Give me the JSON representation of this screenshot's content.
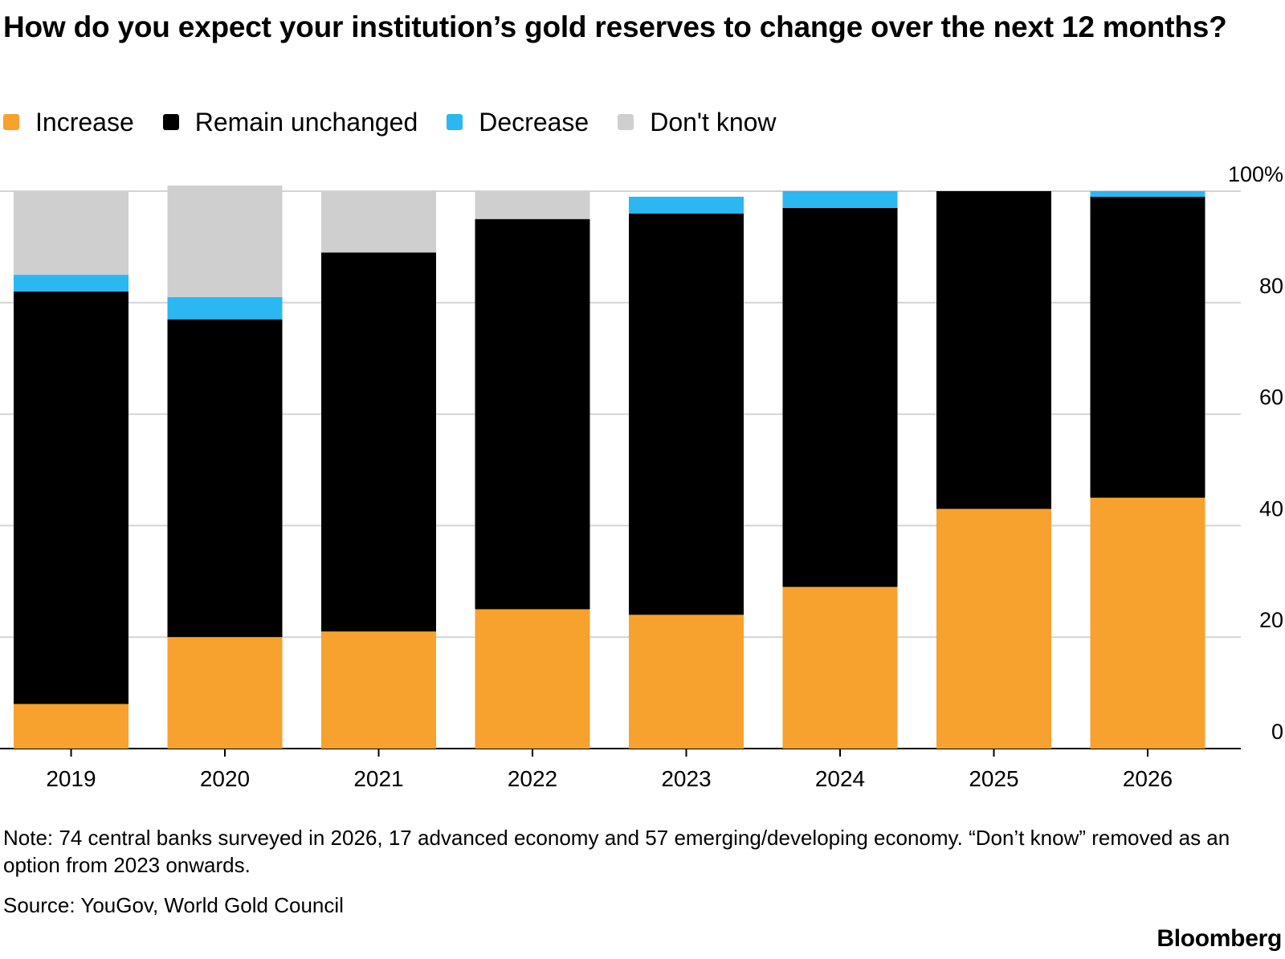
{
  "title": "How do you expect your institution’s gold reserves to change over the next 12 months?",
  "legend": [
    {
      "label": "Increase",
      "color": "#f7a12f"
    },
    {
      "label": "Remain unchanged",
      "color": "#000000"
    },
    {
      "label": "Decrease",
      "color": "#2bb7f2"
    },
    {
      "label": "Don't know",
      "color": "#cfcfcf"
    }
  ],
  "note": "Note: 74 central banks surveyed in 2026, 17 advanced economy and 57 emerging/developing economy. “Don’t know” removed as an option from 2023 onwards.",
  "source": "Source: YouGov, World Gold Council",
  "logo": "Bloomberg",
  "chart_data": {
    "type": "bar",
    "stacked": true,
    "categories": [
      "2019",
      "2020",
      "2021",
      "2022",
      "2023",
      "2024",
      "2025",
      "2026"
    ],
    "series": [
      {
        "name": "Increase",
        "color": "#f7a12f",
        "values": [
          8,
          20,
          21,
          25,
          24,
          29,
          43,
          45
        ]
      },
      {
        "name": "Remain unchanged",
        "color": "#000000",
        "values": [
          74,
          57,
          68,
          70,
          72,
          68,
          57,
          54
        ]
      },
      {
        "name": "Decrease",
        "color": "#2bb7f2",
        "values": [
          3,
          4,
          0,
          0,
          3,
          3,
          0,
          1
        ]
      },
      {
        "name": "Don't know",
        "color": "#cfcfcf",
        "values": [
          15,
          20,
          11,
          5,
          0,
          0,
          0,
          0
        ]
      }
    ],
    "yticks": [
      0,
      20,
      40,
      60,
      80,
      100
    ],
    "ytick_labels": [
      "0",
      "20",
      "40",
      "60",
      "80",
      "100%"
    ],
    "ylim": [
      0,
      100
    ],
    "y_axis_side": "right",
    "grid": true,
    "legend_position": "top-left"
  }
}
